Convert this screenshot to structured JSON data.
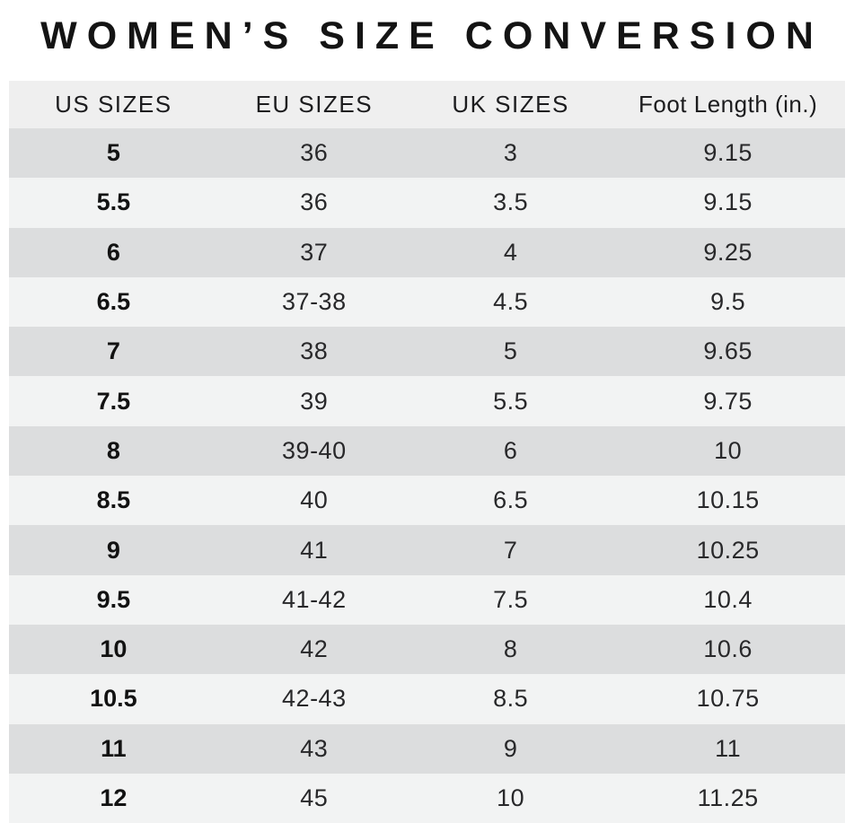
{
  "title": "WOMEN’S SIZE CONVERSION",
  "colors": {
    "background": "#ffffff",
    "header_row": "#efefef",
    "row_dark": "#dcddde",
    "row_light": "#f2f3f3",
    "text": "#1c1c1e"
  },
  "chart_data": {
    "type": "table",
    "title": "WOMEN’S SIZE CONVERSION",
    "columns": [
      "US SIZES",
      "EU SIZES",
      "UK SIZES",
      "Foot Length (in.)"
    ],
    "rows": [
      [
        "5",
        "36",
        "3",
        "9.15"
      ],
      [
        "5.5",
        "36",
        "3.5",
        "9.15"
      ],
      [
        "6",
        "37",
        "4",
        "9.25"
      ],
      [
        "6.5",
        "37-38",
        "4.5",
        "9.5"
      ],
      [
        "7",
        "38",
        "5",
        "9.65"
      ],
      [
        "7.5",
        "39",
        "5.5",
        "9.75"
      ],
      [
        "8",
        "39-40",
        "6",
        "10"
      ],
      [
        "8.5",
        "40",
        "6.5",
        "10.15"
      ],
      [
        "9",
        "41",
        "7",
        "10.25"
      ],
      [
        "9.5",
        "41-42",
        "7.5",
        "10.4"
      ],
      [
        "10",
        "42",
        "8",
        "10.6"
      ],
      [
        "10.5",
        "42-43",
        "8.5",
        "10.75"
      ],
      [
        "11",
        "43",
        "9",
        "11"
      ],
      [
        "12",
        "45",
        "10",
        "11.25"
      ]
    ],
    "layout": {
      "row_striping": "alternating dark/light starting dark",
      "alignment": "center",
      "us_column_bold": true
    }
  }
}
